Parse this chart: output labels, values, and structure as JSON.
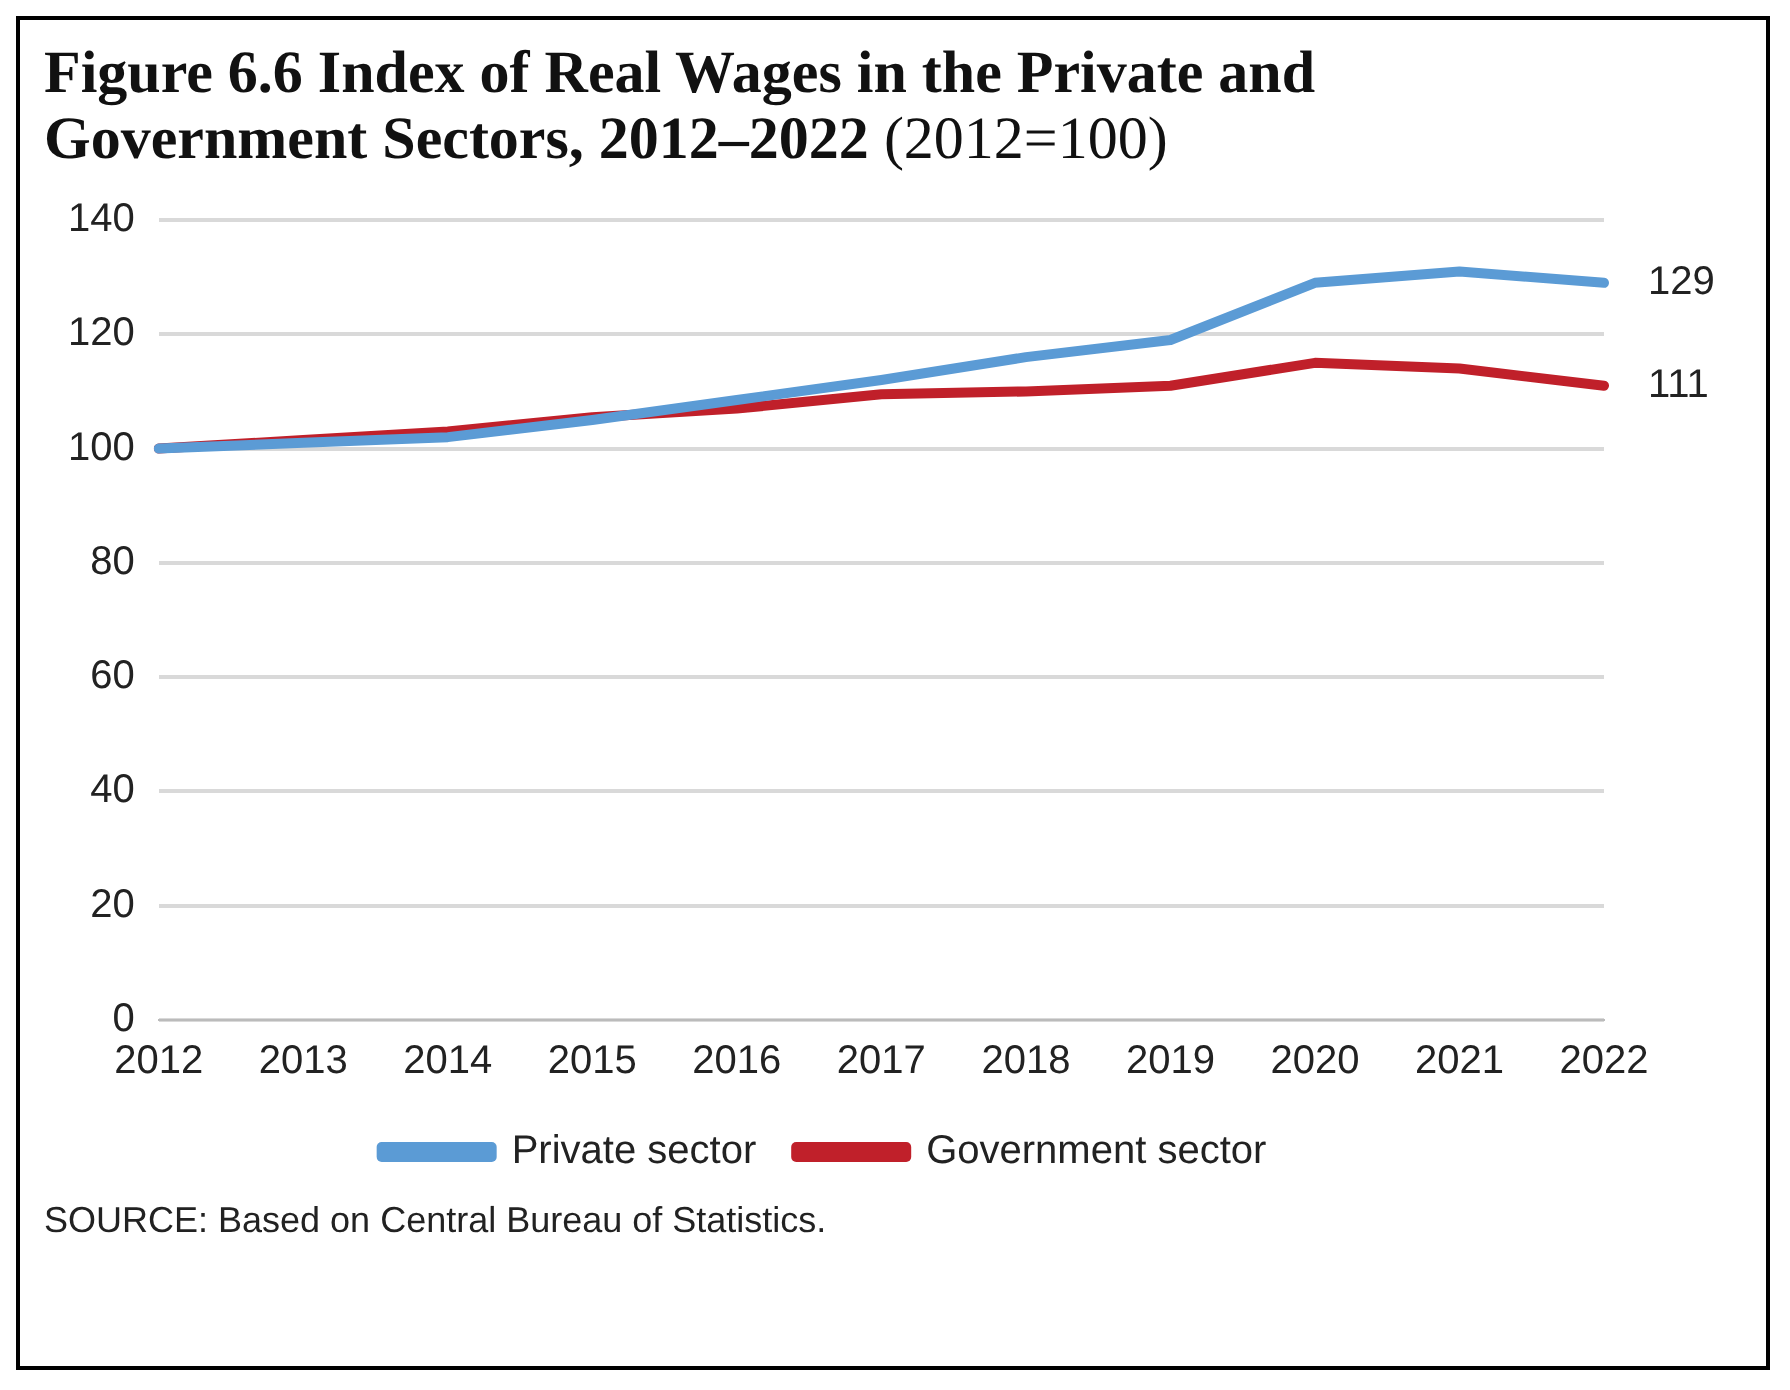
{
  "chart_data": {
    "type": "line",
    "title": "Figure 6.6 Index of Real Wages in the Private and Government Sectors, 2012–2022",
    "subtitle": "(2012=100)",
    "categories": [
      "2012",
      "2013",
      "2014",
      "2015",
      "2016",
      "2017",
      "2018",
      "2019",
      "2020",
      "2021",
      "2022"
    ],
    "series": [
      {
        "name": "Private sector",
        "color": "#5b9bd5",
        "values": [
          100,
          101,
          102,
          105,
          108.5,
          112,
          116,
          119,
          129,
          131,
          129
        ],
        "value_labels": [
          null,
          null,
          null,
          null,
          null,
          null,
          null,
          null,
          null,
          null,
          "129"
        ]
      },
      {
        "name": "Government sector",
        "color": "#c0202a",
        "values": [
          100,
          101.5,
          103,
          105.5,
          107,
          109.5,
          110,
          111,
          115,
          114,
          111
        ],
        "value_labels": [
          null,
          null,
          null,
          null,
          null,
          null,
          null,
          null,
          null,
          null,
          "111"
        ]
      }
    ],
    "ylim": [
      0,
      140
    ],
    "yticks": [
      0,
      20,
      40,
      60,
      80,
      100,
      120,
      140
    ],
    "grid": "y",
    "legend": "bottom",
    "marker": "none",
    "line_style": "solid",
    "annotations": [
      "SOURCE: Based on Central Bureau of Statistics."
    ]
  }
}
